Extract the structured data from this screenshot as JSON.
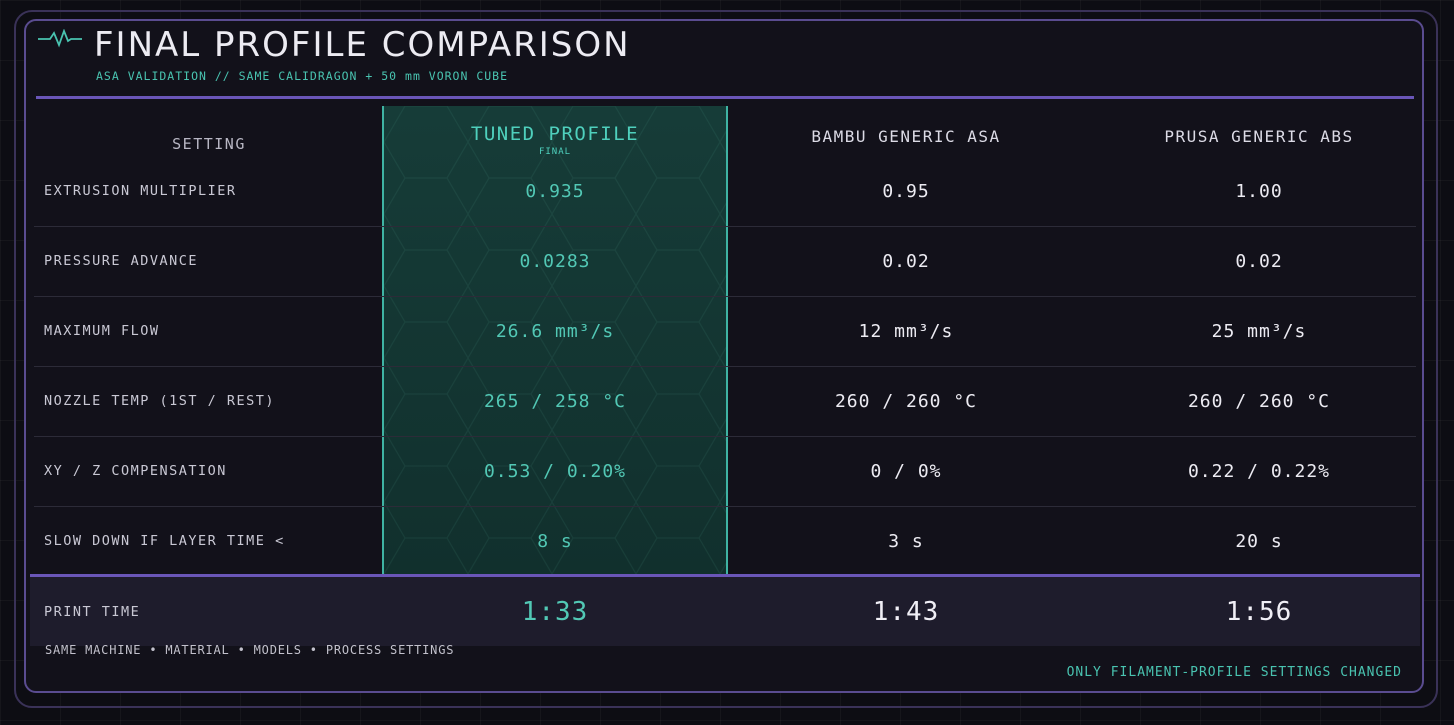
{
  "header": {
    "title": "FINAL PROFILE COMPARISON",
    "subtitle": "ASA VALIDATION  //  SAME CALIDRAGON + 50 mm VORON CUBE"
  },
  "columns": {
    "setting": "SETTING",
    "tuned": "TUNED PROFILE",
    "tuned_sub": "FINAL",
    "bambu": "BAMBU GENERIC ASA",
    "prusa": "PRUSA GENERIC ABS"
  },
  "rows": [
    {
      "label": "EXTRUSION MULTIPLIER",
      "tuned": "0.935",
      "bambu": "0.95",
      "prusa": "1.00"
    },
    {
      "label": "PRESSURE ADVANCE",
      "tuned": "0.0283",
      "bambu": "0.02",
      "prusa": "0.02"
    },
    {
      "label": "MAXIMUM FLOW",
      "tuned": "26.6 mm³/s",
      "bambu": "12 mm³/s",
      "prusa": "25 mm³/s"
    },
    {
      "label": "NOZZLE TEMP (1ST / REST)",
      "tuned": "265 / 258 °C",
      "bambu": "260 / 260 °C",
      "prusa": "260 / 260 °C"
    },
    {
      "label": "XY / Z COMPENSATION",
      "tuned": "0.53 / 0.20%",
      "bambu": "0 / 0%",
      "prusa": "0.22 / 0.22%"
    },
    {
      "label": "SLOW DOWN IF LAYER TIME <",
      "tuned": "8 s",
      "bambu": "3 s",
      "prusa": "20 s"
    }
  ],
  "print_time": {
    "label": "PRINT TIME",
    "tuned": "1:33",
    "bambu": "1:43",
    "prusa": "1:56"
  },
  "footer": {
    "left": "SAME MACHINE • MATERIAL • MODELS • PROCESS SETTINGS",
    "right": "ONLY FILAMENT-PROFILE SETTINGS CHANGED"
  },
  "icons": {
    "header": "pulse-icon"
  },
  "colors": {
    "accent_teal": "#4fd0bd",
    "accent_purple": "#6a56b8"
  }
}
